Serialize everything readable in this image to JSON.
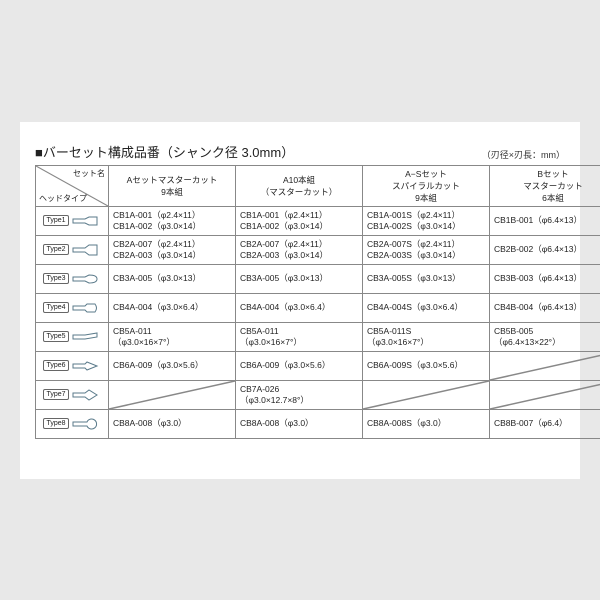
{
  "title": "■バーセット構成品番（シャンク径 3.0mm）",
  "unit_note": "（刃径×刃長：mm）",
  "diag": {
    "top": "セット名",
    "bottom": "ヘッドタイプ"
  },
  "headers": [
    "Aセットマスターカット\n9本組",
    "A10本組\n（マスターカット）",
    "A−Sセット\nスパイラルカット\n9本組",
    "Bセット\nマスターカット\n6本組"
  ],
  "types": [
    "Type1",
    "Type2",
    "Type3",
    "Type4",
    "Type5",
    "Type6",
    "Type7",
    "Type8"
  ],
  "icons": [
    "M2 4 L14 4 L18 2 L26 2 L26 10 L18 10 L14 8 L2 8 Z",
    "M2 4 L14 4 L18 1 L26 1 L26 11 L18 11 L14 8 L2 8 Z",
    "M2 4 L14 4 L18 2 Q26 2 26 6 Q26 10 18 10 L14 8 L2 8 Z",
    "M2 4 L14 4 L16 2 L24 2 Q27 6 24 10 L16 10 L14 8 L2 8 Z",
    "M2 4 L14 4 L26 2 L26 6 L14 8 L2 8 Z",
    "M2 4 L14 4 L16 2 L26 6 L16 10 L14 8 L2 8 Z",
    "M2 4 L14 4 L18 1 L26 6 L18 11 L14 8 L2 8 Z",
    "M2 4 L14 4 L16 4 A5 5 0 1 1 16 8 L14 8 L2 8 Z"
  ],
  "rows": [
    [
      "CB1A-001（φ2.4×11）\nCB1A-002（φ3.0×14）",
      "CB1A-001（φ2.4×11）\nCB1A-002（φ3.0×14）",
      "CB1A-001S（φ2.4×11）\nCB1A-002S（φ3.0×14）",
      "CB1B-001（φ6.4×13）"
    ],
    [
      "CB2A-007（φ2.4×11）\nCB2A-003（φ3.0×14）",
      "CB2A-007（φ2.4×11）\nCB2A-003（φ3.0×14）",
      "CB2A-007S（φ2.4×11）\nCB2A-003S（φ3.0×14）",
      "CB2B-002（φ6.4×13）"
    ],
    [
      "CB3A-005（φ3.0×13）",
      "CB3A-005（φ3.0×13）",
      "CB3A-005S（φ3.0×13）",
      "CB3B-003（φ6.4×13）"
    ],
    [
      "CB4A-004（φ3.0×6.4）",
      "CB4A-004（φ3.0×6.4）",
      "CB4A-004S（φ3.0×6.4）",
      "CB4B-004（φ6.4×13）"
    ],
    [
      "CB5A-011\n（φ3.0×16×7°）",
      "CB5A-011\n（φ3.0×16×7°）",
      "CB5A-011S\n（φ3.0×16×7°）",
      "CB5B-005\n（φ6.4×13×22°）"
    ],
    [
      "CB6A-009（φ3.0×5.6）",
      "CB6A-009（φ3.0×5.6）",
      "CB6A-009S（φ3.0×5.6）",
      null
    ],
    [
      null,
      "CB7A-026\n（φ3.0×12.7×8°）",
      null,
      null
    ],
    [
      "CB8A-008（φ3.0）",
      "CB8A-008（φ3.0）",
      "CB8A-008S（φ3.0）",
      "CB8B-007（φ6.4）"
    ]
  ],
  "colors": {
    "border": "#888888",
    "text": "#222222",
    "icon_stroke": "#5a7a8a"
  }
}
